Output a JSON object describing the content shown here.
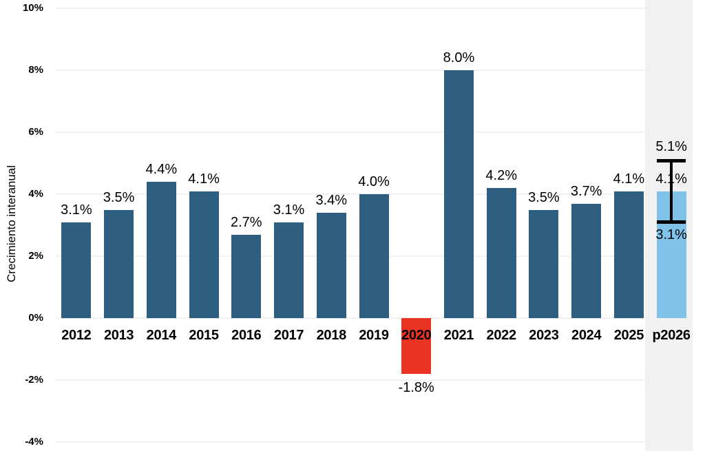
{
  "chart_data": {
    "type": "bar",
    "title": "",
    "xlabel": "",
    "ylabel": "Crecimiento interanual",
    "ylim": [
      -4,
      10
    ],
    "grid": "horizontal-light",
    "legend": "none",
    "yticks": [
      {
        "value": 10,
        "label": "10%"
      },
      {
        "value": 8,
        "label": "8%"
      },
      {
        "value": 6,
        "label": "6%"
      },
      {
        "value": 4,
        "label": "4%"
      },
      {
        "value": 2,
        "label": "2%"
      },
      {
        "value": 0,
        "label": "0%"
      },
      {
        "value": -2,
        "label": "-2%"
      },
      {
        "value": -4,
        "label": "-4%"
      }
    ],
    "categories": [
      "2012",
      "2013",
      "2014",
      "2015",
      "2016",
      "2017",
      "2018",
      "2019",
      "2020",
      "2021",
      "2022",
      "2023",
      "2024",
      "2025",
      "p2026"
    ],
    "values": [
      3.1,
      3.5,
      4.4,
      4.1,
      2.7,
      3.1,
      3.4,
      4.0,
      -1.8,
      8.0,
      4.2,
      3.5,
      3.7,
      4.1,
      4.1
    ],
    "value_labels": [
      "3.1%",
      "3.5%",
      "4.4%",
      "4.1%",
      "2.7%",
      "3.1%",
      "3.4%",
      "4.0%",
      "-1.8%",
      "8.0%",
      "4.2%",
      "3.5%",
      "3.7%",
      "4.1%",
      "4.1%"
    ],
    "bar_kinds": [
      "actual",
      "actual",
      "actual",
      "actual",
      "actual",
      "actual",
      "actual",
      "actual",
      "negative",
      "actual",
      "actual",
      "actual",
      "actual",
      "actual",
      "forecast"
    ],
    "forecast": {
      "category": "p2026",
      "value": 4.1,
      "upper": 5.1,
      "lower": 3.1,
      "upper_label": "5.1%",
      "lower_label": "3.1%",
      "band": true
    },
    "colors": {
      "actual": "#2F5F80",
      "negative": "#E93423",
      "forecast": "#80C2E8",
      "band": "#F1F1F1",
      "grid": "#F0F0F0",
      "text": "#000000",
      "error_bar": "#000000"
    }
  }
}
